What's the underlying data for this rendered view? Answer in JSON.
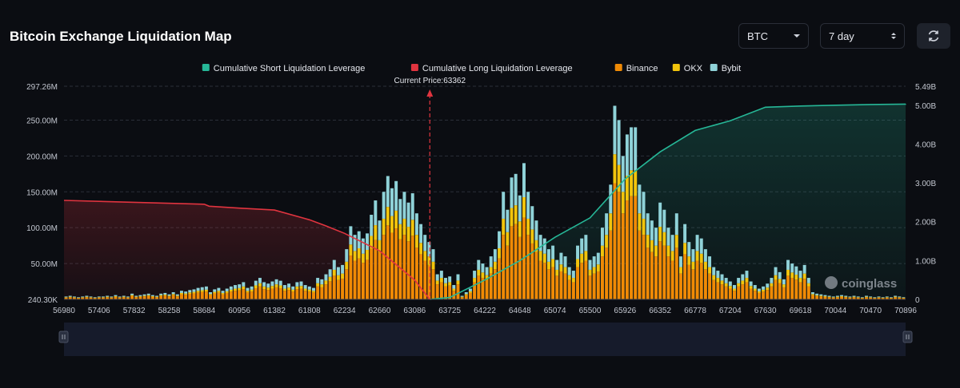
{
  "header": {
    "title": "Bitcoin Exchange Liquidation Map",
    "asset_select": "BTC",
    "period_select": "7 day",
    "refresh_icon": "refresh-icon"
  },
  "watermark": "coinglass",
  "colors": {
    "short_cum": "#26b797",
    "long_cum": "#e0343f",
    "binance": "#f08a05",
    "okx": "#f2c40c",
    "bybit": "#8fd2d8"
  },
  "chart_data": {
    "type": "bar",
    "legend_position": "top-center",
    "legend": [
      {
        "key": "short_cum",
        "label": "Cumulative Short Liquidation Leverage"
      },
      {
        "key": "long_cum",
        "label": "Cumulative Long Liquidation Leverage"
      },
      {
        "key": "binance",
        "label": "Binance"
      },
      {
        "key": "okx",
        "label": "OKX"
      },
      {
        "key": "bybit",
        "label": "Bybit"
      }
    ],
    "current_price": 63362,
    "current_price_label": "Current Price:63362",
    "x_tick_labels": [
      "56980",
      "57406",
      "57832",
      "58258",
      "58684",
      "60956",
      "61382",
      "61808",
      "62234",
      "62660",
      "63086",
      "63725",
      "64222",
      "64648",
      "65074",
      "65500",
      "65926",
      "66352",
      "66778",
      "67204",
      "67630",
      "69618",
      "70044",
      "70470",
      "70896"
    ],
    "y_left": {
      "unit": "M",
      "min": 0.24,
      "max": 297.26,
      "ticks": [
        {
          "v": 0.24,
          "label": "240.30K"
        },
        {
          "v": 50,
          "label": "50.00M"
        },
        {
          "v": 100,
          "label": "100.00M"
        },
        {
          "v": 150,
          "label": "150.00M"
        },
        {
          "v": 200,
          "label": "200.00M"
        },
        {
          "v": 250,
          "label": "250.00M"
        },
        {
          "v": 297.26,
          "label": "297.26M"
        }
      ]
    },
    "y_right": {
      "unit": "B",
      "min": 0,
      "max": 5.49,
      "ticks": [
        {
          "v": 0,
          "label": "0"
        },
        {
          "v": 1,
          "label": "1.00B"
        },
        {
          "v": 2,
          "label": "2.00B"
        },
        {
          "v": 3,
          "label": "3.00B"
        },
        {
          "v": 4,
          "label": "4.00B"
        },
        {
          "v": 5,
          "label": "5.00B"
        },
        {
          "v": 5.49,
          "label": "5.49B"
        }
      ]
    },
    "bar_totals_M": [
      4,
      5,
      4,
      3,
      4,
      5,
      4,
      3,
      4,
      4,
      5,
      4,
      6,
      4,
      5,
      4,
      8,
      5,
      6,
      7,
      8,
      6,
      5,
      8,
      9,
      7,
      10,
      7,
      12,
      11,
      13,
      14,
      16,
      17,
      18,
      10,
      14,
      16,
      12,
      15,
      18,
      20,
      21,
      24,
      16,
      18,
      26,
      30,
      24,
      22,
      25,
      28,
      26,
      20,
      22,
      18,
      24,
      25,
      20,
      18,
      16,
      30,
      28,
      35,
      42,
      55,
      45,
      48,
      70,
      102,
      90,
      95,
      85,
      92,
      118,
      138,
      110,
      150,
      172,
      155,
      165,
      140,
      150,
      135,
      148,
      120,
      105,
      90,
      80,
      70,
      35,
      40,
      30,
      32,
      20,
      35,
      5,
      10,
      15,
      40,
      55,
      50,
      45,
      60,
      70,
      95,
      150,
      125,
      170,
      175,
      145,
      190,
      150,
      130,
      110,
      90,
      85,
      70,
      75,
      55,
      65,
      60,
      45,
      40,
      75,
      85,
      90,
      55,
      60,
      65,
      100,
      120,
      160,
      270,
      250,
      200,
      230,
      240,
      240,
      160,
      150,
      120,
      110,
      100,
      135,
      125,
      100,
      90,
      120,
      60,
      105,
      80,
      70,
      90,
      85,
      70,
      60,
      45,
      40,
      35,
      30,
      25,
      20,
      30,
      35,
      40,
      25,
      20,
      15,
      18,
      22,
      30,
      45,
      38,
      28,
      55,
      50,
      46,
      40,
      48,
      30,
      10,
      8,
      7,
      6,
      5,
      4,
      5,
      6,
      5,
      4,
      5,
      4,
      3,
      5,
      4,
      3,
      4,
      3,
      4,
      3,
      5,
      4,
      3
    ],
    "series_share": {
      "binance": 0.6,
      "okx": 0.15,
      "bybit": 0.25
    },
    "long_cum_B": [
      [
        56980,
        2.55
      ],
      [
        57832,
        2.5
      ],
      [
        58684,
        2.45
      ],
      [
        59000,
        2.4
      ],
      [
        60956,
        2.35
      ],
      [
        61382,
        2.3
      ],
      [
        61808,
        2.05
      ],
      [
        62000,
        1.9
      ],
      [
        62234,
        1.7
      ],
      [
        62660,
        1.25
      ],
      [
        63086,
        0.5
      ],
      [
        63362,
        0.0
      ]
    ],
    "short_cum_B": [
      [
        63362,
        0.0
      ],
      [
        63725,
        0.05
      ],
      [
        64222,
        0.5
      ],
      [
        64648,
        1.0
      ],
      [
        65074,
        1.6
      ],
      [
        65500,
        2.1
      ],
      [
        65926,
        3.1
      ],
      [
        66352,
        3.8
      ],
      [
        66778,
        4.35
      ],
      [
        67204,
        4.6
      ],
      [
        67630,
        4.95
      ],
      [
        69618,
        4.98
      ],
      [
        70044,
        5.0
      ],
      [
        70470,
        5.02
      ],
      [
        70896,
        5.03
      ]
    ]
  }
}
